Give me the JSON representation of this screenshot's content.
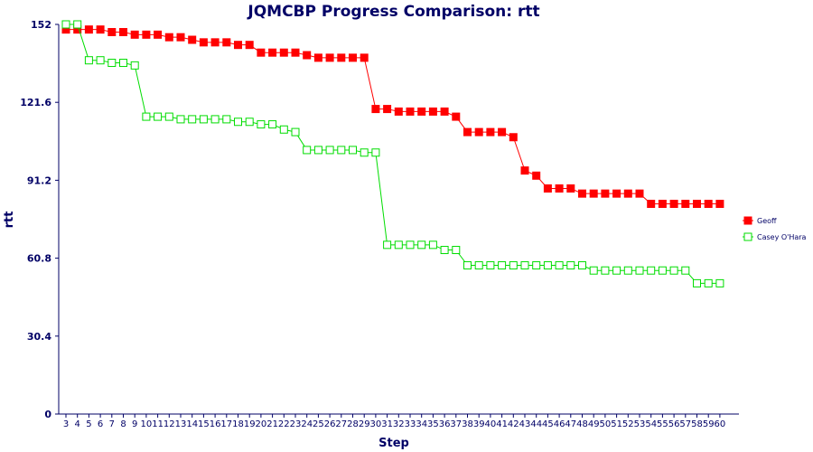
{
  "chart_data": {
    "type": "line",
    "title": "JQMCBP Progress Comparison: rtt",
    "xlabel": "Step",
    "ylabel": "rtt",
    "ylim": [
      0,
      152
    ],
    "yticks": [
      "0",
      "30.4",
      "60.8",
      "91.2",
      "121.6",
      "152"
    ],
    "legend_position": "right",
    "grid": false,
    "categories": [
      "3",
      "4",
      "5",
      "6",
      "7",
      "8",
      "9",
      "10",
      "11",
      "12",
      "13",
      "14",
      "15",
      "16",
      "17",
      "18",
      "19",
      "20",
      "21",
      "22",
      "23",
      "24",
      "25",
      "26",
      "27",
      "28",
      "29",
      "30",
      "31",
      "32",
      "33",
      "34",
      "35",
      "36",
      "37",
      "38",
      "39",
      "40",
      "41",
      "42",
      "43",
      "44",
      "45",
      "46",
      "47",
      "48",
      "49",
      "50",
      "51",
      "52",
      "53",
      "54",
      "55",
      "56",
      "57",
      "58",
      "59",
      "60"
    ],
    "series": [
      {
        "name": "Geoff",
        "color": "#ff0000",
        "marker": "filled-square",
        "values": [
          150,
          150,
          150,
          150,
          149,
          149,
          148,
          148,
          148,
          147,
          147,
          146,
          145,
          145,
          145,
          144,
          144,
          141,
          141,
          141,
          141,
          140,
          139,
          139,
          139,
          139,
          139,
          119,
          119,
          118,
          118,
          118,
          118,
          118,
          116,
          110,
          110,
          110,
          110,
          108,
          95,
          93,
          88,
          88,
          88,
          86,
          86,
          86,
          86,
          86,
          86,
          82,
          82,
          82,
          82,
          82,
          82,
          82
        ]
      },
      {
        "name": "Casey O'Hara",
        "color": "#00dd00",
        "marker": "hollow-square",
        "values": [
          152,
          152,
          138,
          138,
          137,
          137,
          136,
          116,
          116,
          116,
          115,
          115,
          115,
          115,
          115,
          114,
          114,
          113,
          113,
          111,
          110,
          103,
          103,
          103,
          103,
          103,
          102,
          102,
          66,
          66,
          66,
          66,
          66,
          64,
          64,
          58,
          58,
          58,
          58,
          58,
          58,
          58,
          58,
          58,
          58,
          58,
          56,
          56,
          56,
          56,
          56,
          56,
          56,
          56,
          56,
          51,
          51,
          51
        ]
      }
    ]
  }
}
